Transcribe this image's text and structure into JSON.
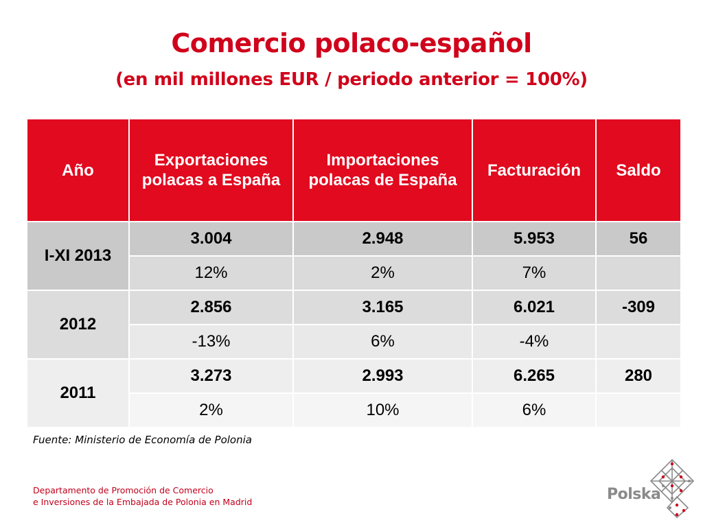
{
  "slide": {
    "title": "Comercio polaco-español",
    "subtitle": "(en mil millones EUR / periodo anterior = 100%)"
  },
  "table": {
    "headers": {
      "year": "Año",
      "exports": "Exportaciones polacas a España",
      "imports": "Importaciones polacas de España",
      "turnover": "Facturación",
      "balance": "Saldo"
    },
    "rows": [
      {
        "year": "I-XI 2013",
        "exports": "3.004",
        "imports": "2.948",
        "turnover": "5.953",
        "balance": "56",
        "exports_pct": "12%",
        "imports_pct": "2%",
        "turnover_pct": "7%"
      },
      {
        "year": "2012",
        "exports": "2.856",
        "imports": "3.165",
        "turnover": "6.021",
        "balance": "-309",
        "exports_pct": "-13%",
        "imports_pct": "6%",
        "turnover_pct": "-4%"
      },
      {
        "year": "2011",
        "exports": "3.273",
        "imports": "2.993",
        "turnover": "6.265",
        "balance": "280",
        "exports_pct": "2%",
        "imports_pct": "10%",
        "turnover_pct": "6%"
      }
    ]
  },
  "footer": {
    "source": "Fuente: Ministerio de Economía de Polonia",
    "dept_line1": "Departamento de Promoción de Comercio",
    "dept_line2": "e Inversiones de la Embajada de Polonia en Madrid",
    "logo_text": "Polska"
  },
  "colors": {
    "accent_red": "#d0021b",
    "header_red": "#e10a1f",
    "logo_gray": "#8a8a8a"
  },
  "icons": {
    "logo": "polska-logo-icon"
  }
}
